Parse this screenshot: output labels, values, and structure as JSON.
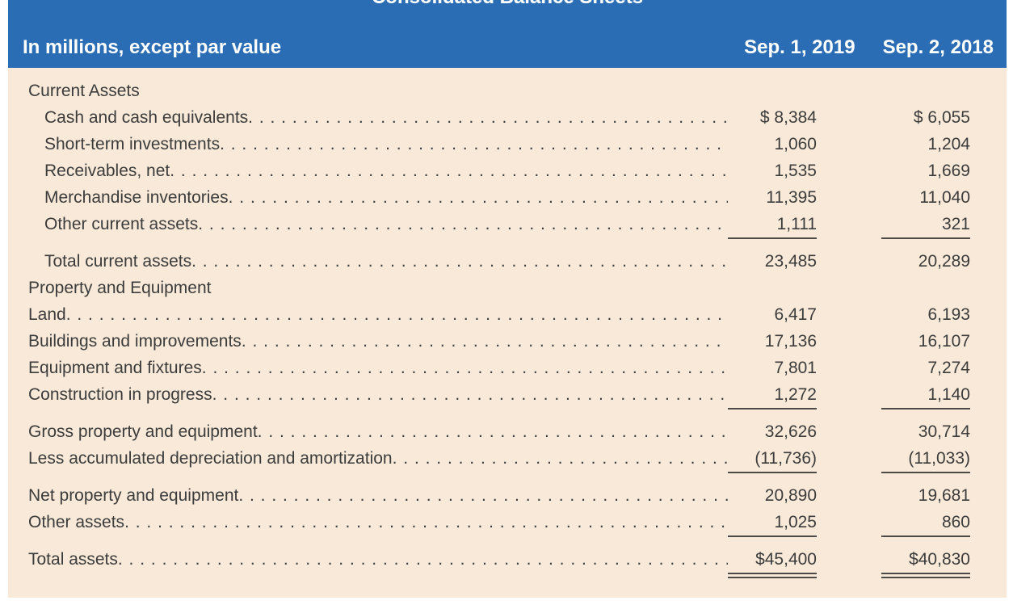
{
  "title": "Consolidated Balance Sheets",
  "header": {
    "caption": "In millions, except par value",
    "col_2019": "Sep. 1, 2019",
    "col_2018": "Sep. 2, 2018"
  },
  "colors": {
    "header_bg": "#2a6db5",
    "header_text": "#ffffff",
    "body_bg": "#f8e9d8",
    "body_text": "#3c3c3c",
    "rule": "#4d4a45"
  },
  "rows": [
    {
      "label": "Current Assets",
      "type": "heading",
      "indent": 0,
      "dots": false,
      "v2019": "",
      "v2018": "",
      "underline": "none",
      "gap_before": false
    },
    {
      "label": "Cash and cash equivalents",
      "type": "item",
      "indent": 1,
      "dots": true,
      "v2019": "$ 8,384",
      "v2018": "$ 6,055",
      "underline": "none",
      "gap_before": false
    },
    {
      "label": "Short-term investments",
      "type": "item",
      "indent": 1,
      "dots": true,
      "v2019": "1,060",
      "v2018": "1,204",
      "underline": "none",
      "gap_before": false
    },
    {
      "label": "Receivables, net",
      "type": "item",
      "indent": 1,
      "dots": true,
      "v2019": "1,535",
      "v2018": "1,669",
      "underline": "none",
      "gap_before": false
    },
    {
      "label": "Merchandise inventories",
      "type": "item",
      "indent": 1,
      "dots": true,
      "v2019": "11,395",
      "v2018": "11,040",
      "underline": "none",
      "gap_before": false
    },
    {
      "label": "Other current assets",
      "type": "item",
      "indent": 1,
      "dots": true,
      "v2019": "1,111",
      "v2018": "321",
      "underline": "single",
      "gap_before": false
    },
    {
      "label": "Total current assets",
      "type": "subtotal",
      "indent": 1,
      "dots": true,
      "v2019": "23,485",
      "v2018": "20,289",
      "underline": "none",
      "gap_before": true
    },
    {
      "label": "Property and Equipment",
      "type": "heading",
      "indent": 0,
      "dots": false,
      "v2019": "",
      "v2018": "",
      "underline": "none",
      "gap_before": false
    },
    {
      "label": "Land",
      "type": "item",
      "indent": 0,
      "dots": true,
      "v2019": "6,417",
      "v2018": "6,193",
      "underline": "none",
      "gap_before": false
    },
    {
      "label": "Buildings and improvements",
      "type": "item",
      "indent": 0,
      "dots": true,
      "v2019": "17,136",
      "v2018": "16,107",
      "underline": "none",
      "gap_before": false
    },
    {
      "label": "Equipment and fixtures",
      "type": "item",
      "indent": 0,
      "dots": true,
      "v2019": "7,801",
      "v2018": "7,274",
      "underline": "none",
      "gap_before": false
    },
    {
      "label": "Construction in progress",
      "type": "item",
      "indent": 0,
      "dots": true,
      "v2019": "1,272",
      "v2018": "1,140",
      "underline": "single",
      "gap_before": false
    },
    {
      "label": "Gross property and equipment",
      "type": "subtotal",
      "indent": 0,
      "dots": true,
      "v2019": "32,626",
      "v2018": "30,714",
      "underline": "none",
      "gap_before": true
    },
    {
      "label": "Less accumulated depreciation and amortization",
      "type": "item",
      "indent": 0,
      "dots": true,
      "v2019": "(11,736)",
      "v2018": "(11,033)",
      "underline": "single",
      "gap_before": false
    },
    {
      "label": "Net property and equipment",
      "type": "subtotal",
      "indent": 0,
      "dots": true,
      "v2019": "20,890",
      "v2018": "19,681",
      "underline": "none",
      "gap_before": true
    },
    {
      "label": "Other assets",
      "type": "item",
      "indent": 0,
      "dots": true,
      "v2019": "1,025",
      "v2018": "860",
      "underline": "single",
      "gap_before": false
    },
    {
      "label": "Total assets",
      "type": "total",
      "indent": 0,
      "dots": true,
      "v2019": "$45,400",
      "v2018": "$40,830",
      "underline": "double",
      "gap_before": true
    }
  ]
}
